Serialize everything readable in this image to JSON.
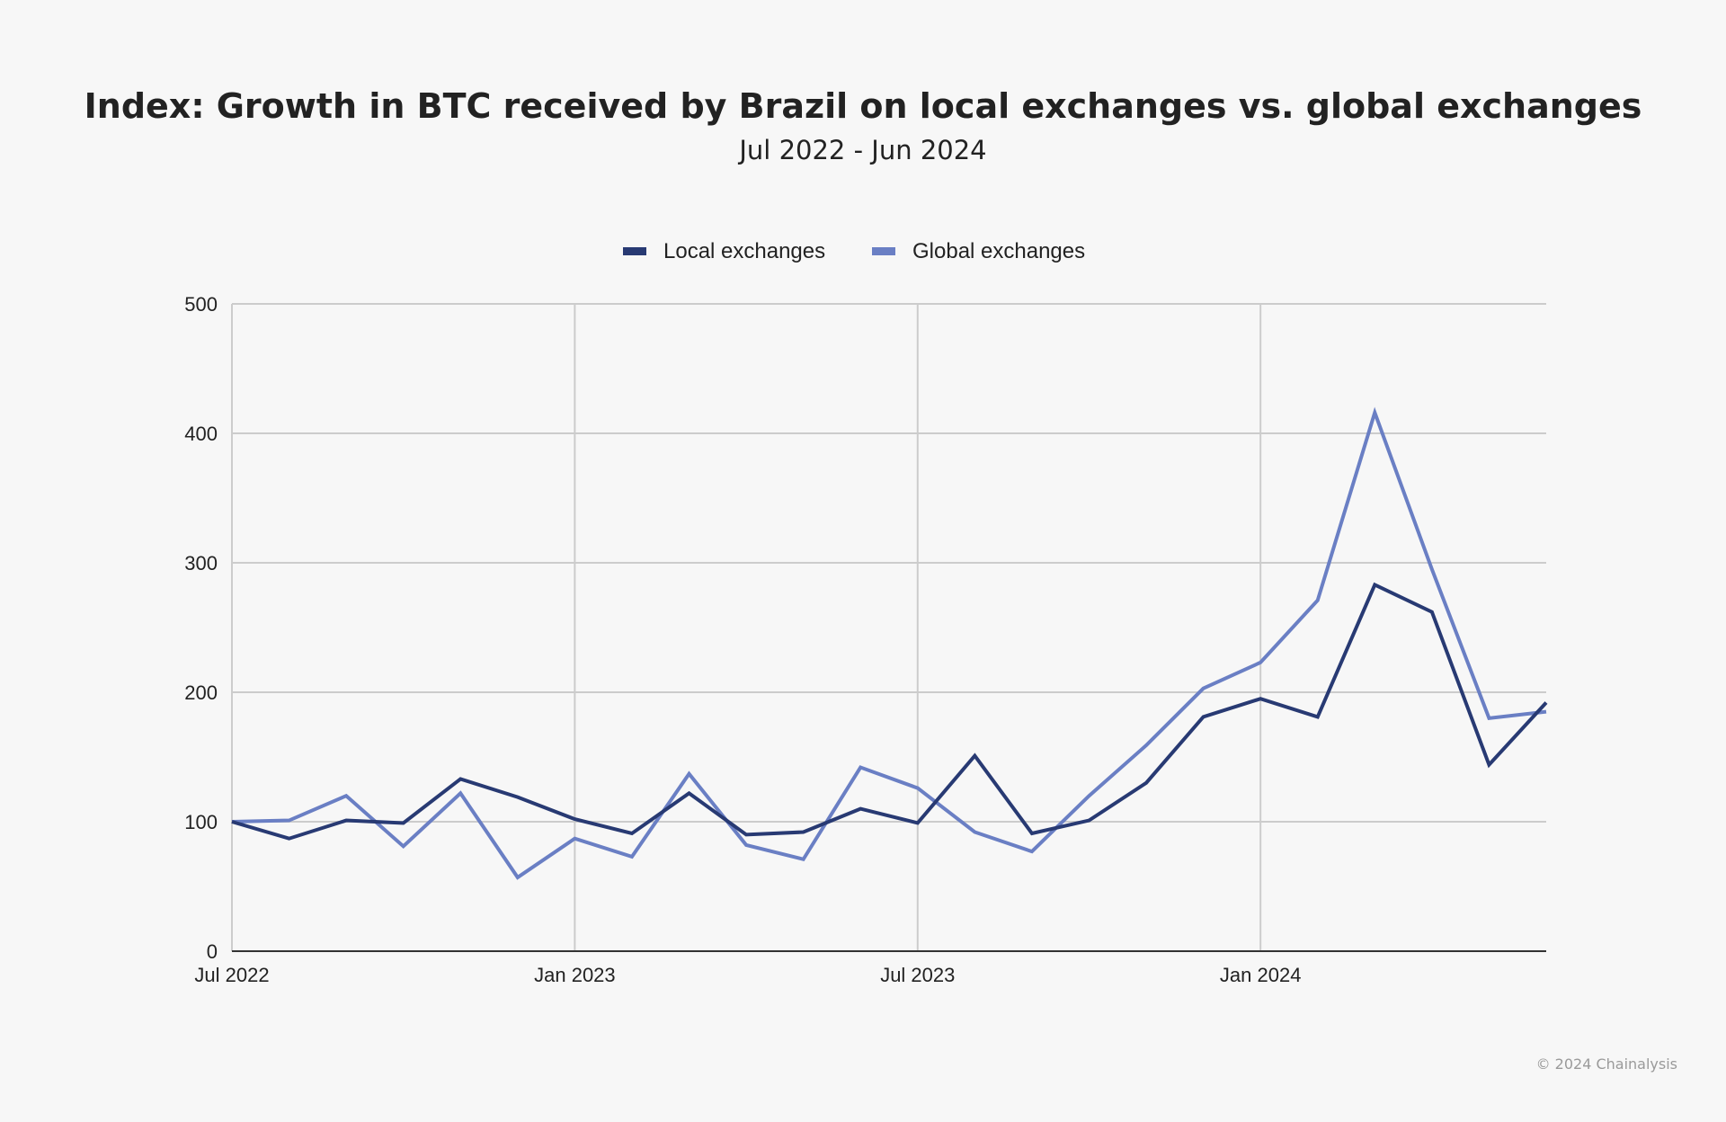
{
  "chart_data": {
    "type": "line",
    "title": "Index: Growth in BTC received by Brazil on local exchanges vs. global exchanges",
    "subtitle": "Jul 2022 - Jun 2024",
    "xlabel": "",
    "ylabel": "",
    "x": [
      "Jul 2022",
      "Aug 2022",
      "Sep 2022",
      "Oct 2022",
      "Nov 2022",
      "Dec 2022",
      "Jan 2023",
      "Feb 2023",
      "Mar 2023",
      "Apr 2023",
      "May 2023",
      "Jun 2023",
      "Jul 2023",
      "Aug 2023",
      "Sep 2023",
      "Oct 2023",
      "Nov 2023",
      "Dec 2023",
      "Jan 2024",
      "Feb 2024",
      "Mar 2024",
      "Apr 2024",
      "May 2024",
      "Jun 2024"
    ],
    "x_ticks": [
      {
        "label": "Jul 2022",
        "index": 0
      },
      {
        "label": "Jan 2023",
        "index": 6
      },
      {
        "label": "Jul 2023",
        "index": 12
      },
      {
        "label": "Jan 2024",
        "index": 18
      }
    ],
    "y_ticks": [
      0,
      100,
      200,
      300,
      400,
      500
    ],
    "ylim": [
      0,
      500
    ],
    "grid": true,
    "legend_position": "top",
    "series": [
      {
        "name": "Local exchanges",
        "color": "#283a73",
        "values": [
          100,
          87,
          101,
          99,
          133,
          119,
          102,
          91,
          122,
          90,
          92,
          110,
          99,
          151,
          91,
          101,
          130,
          181,
          195,
          181,
          283,
          262,
          144,
          192
        ]
      },
      {
        "name": "Global exchanges",
        "color": "#6a7fc4",
        "values": [
          100,
          101,
          120,
          81,
          122,
          57,
          87,
          73,
          137,
          82,
          71,
          142,
          126,
          92,
          77,
          120,
          159,
          203,
          223,
          271,
          416,
          295,
          180,
          185
        ]
      }
    ]
  },
  "footer": {
    "copyright": "© 2024 Chainalysis"
  }
}
